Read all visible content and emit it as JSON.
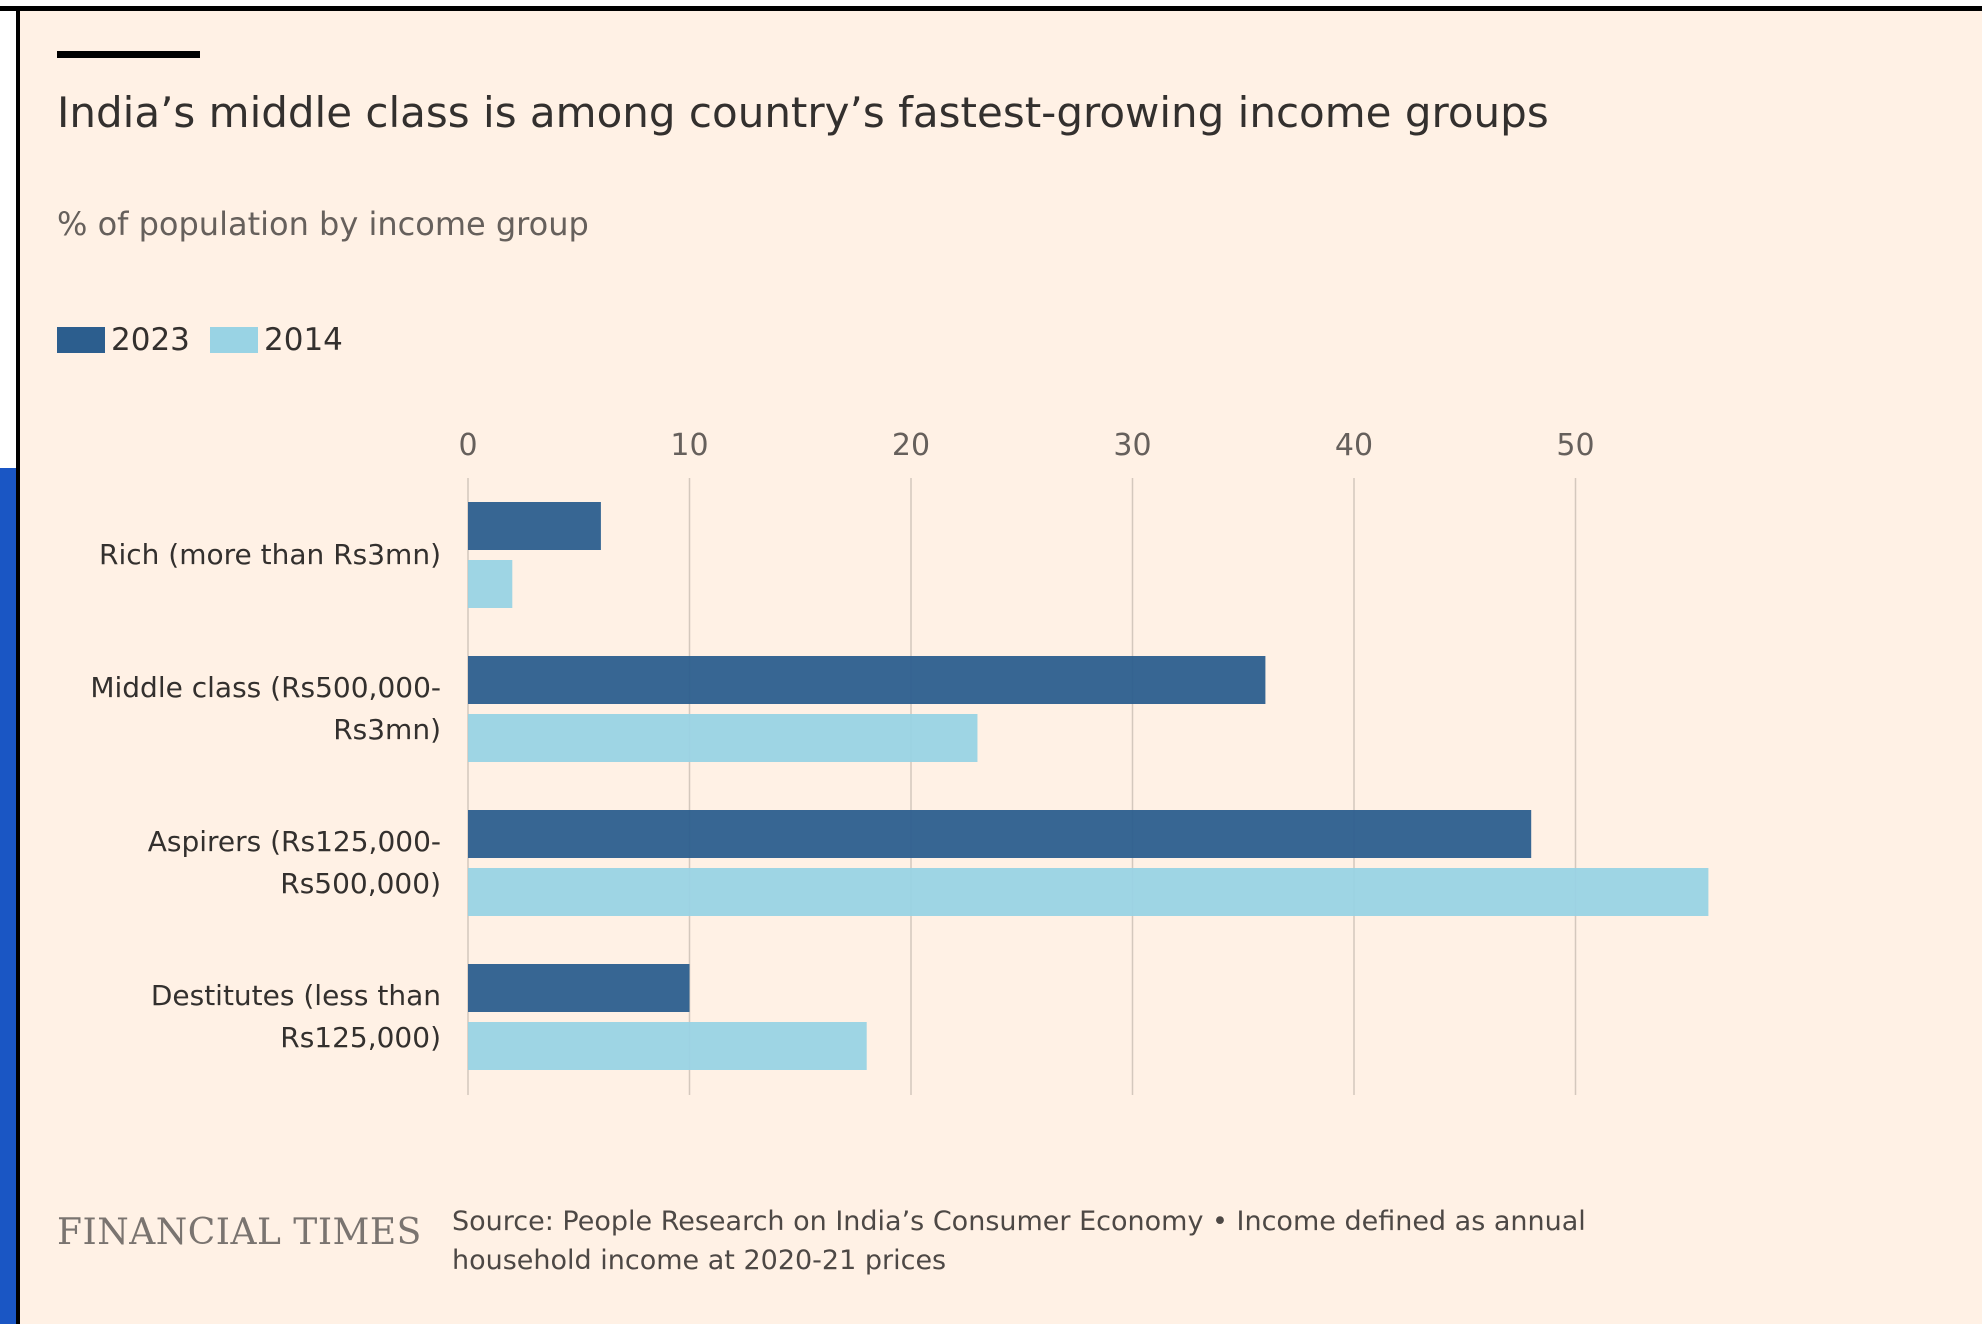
{
  "chart_data": {
    "type": "bar",
    "orientation": "horizontal",
    "title": "India’s middle class is among country’s fastest-growing income groups",
    "subtitle": "% of population by income group",
    "categories": [
      "Rich (more than Rs3mn)",
      "Middle class (Rs500,000-Rs3mn)",
      "Aspirers (Rs125,000-Rs500,000)",
      "Destitutes (less than Rs125,000)"
    ],
    "series": [
      {
        "name": "2023",
        "color": "#2c5e8e",
        "values": [
          6,
          36,
          48,
          10
        ]
      },
      {
        "name": "2014",
        "color": "#99d3e4",
        "values": [
          2,
          23,
          56,
          18
        ]
      }
    ],
    "xlim": [
      0,
      56
    ],
    "xticks": [
      0,
      10,
      20,
      30,
      40,
      50
    ],
    "grid": true,
    "legend": "top-left",
    "brand": "FINANCIAL TIMES",
    "source": "Source: People Research on India’s Consumer Economy • Income defined as annual household income at 2020-21 prices"
  }
}
